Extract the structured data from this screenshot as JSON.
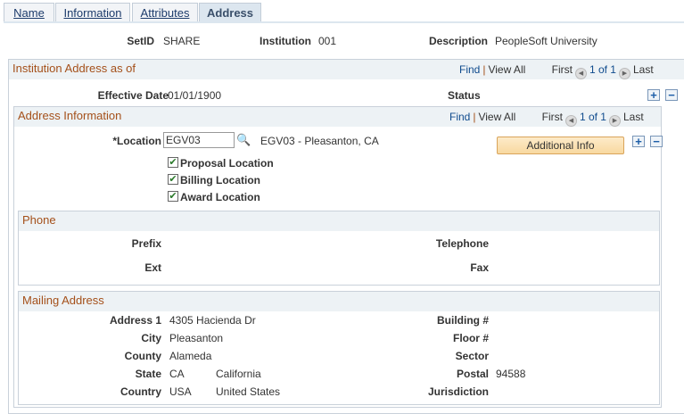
{
  "tabs": [
    {
      "label": "Name"
    },
    {
      "label": "Information"
    },
    {
      "label": "Attributes"
    },
    {
      "label": "Address"
    }
  ],
  "header": {
    "setid_label": "SetID",
    "setid": "SHARE",
    "institution_label": "Institution",
    "institution": "001",
    "description_label": "Description",
    "description": "PeopleSoft University"
  },
  "outer": {
    "title": "Institution Address as of",
    "find": "Find",
    "view_all": "View All",
    "first": "First",
    "count": "1 of 1",
    "last": "Last",
    "effective_date_label": "Effective Date",
    "effective_date": "01/01/1900",
    "status_label": "Status"
  },
  "inner": {
    "title": "Address Information",
    "find": "Find",
    "view_all": "View All",
    "first": "First",
    "count": "1 of 1",
    "last": "Last",
    "location_label": "*Location",
    "location_value": "EGV03",
    "location_desc": "EGV03 - Pleasanton, CA",
    "additional_info": "Additional Info",
    "checkboxes": [
      {
        "label": "Proposal Location",
        "checked": true
      },
      {
        "label": "Billing Location",
        "checked": true
      },
      {
        "label": "Award Location",
        "checked": true
      }
    ]
  },
  "phone": {
    "title": "Phone",
    "prefix": "Prefix",
    "telephone": "Telephone",
    "ext": "Ext",
    "fax": "Fax"
  },
  "mailing": {
    "title": "Mailing Address",
    "address1_label": "Address 1",
    "address1": "4305 Hacienda Dr",
    "city_label": "City",
    "city": "Pleasanton",
    "county_label": "County",
    "county": "Alameda",
    "state_label": "State",
    "state": "CA",
    "state_name": "California",
    "country_label": "Country",
    "country": "USA",
    "country_name": "United States",
    "building_label": "Building #",
    "floor_label": "Floor #",
    "sector_label": "Sector",
    "postal_label": "Postal",
    "postal": "94588",
    "jurisdiction_label": "Jurisdiction"
  }
}
